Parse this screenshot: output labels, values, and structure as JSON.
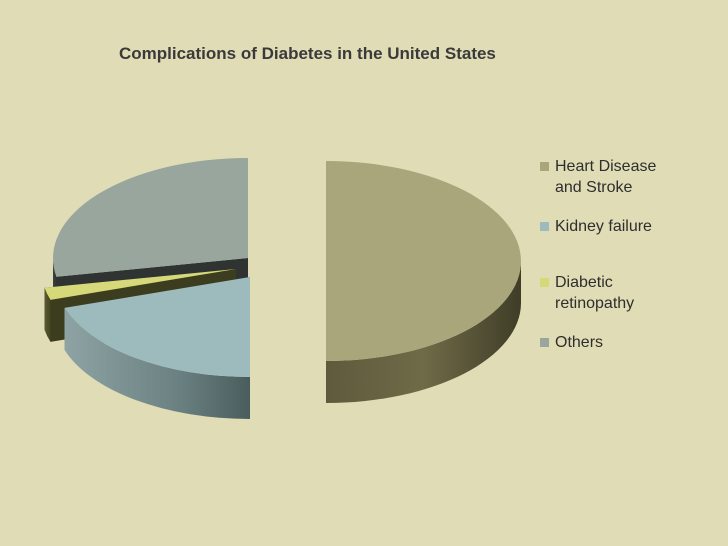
{
  "chart_data": {
    "type": "pie",
    "title": "Complications of Diabetes in the United States",
    "categories": [
      "Heart Disease and Stroke",
      "Kidney failure",
      "Diabetic retinopathy",
      "Others"
    ],
    "values": [
      50,
      20,
      2,
      28
    ],
    "colors": [
      "#a9a67c",
      "#9dbbbd",
      "#d6d87a",
      "#98a69e"
    ],
    "exploded": true,
    "view": "3d",
    "legend_position": "right"
  }
}
